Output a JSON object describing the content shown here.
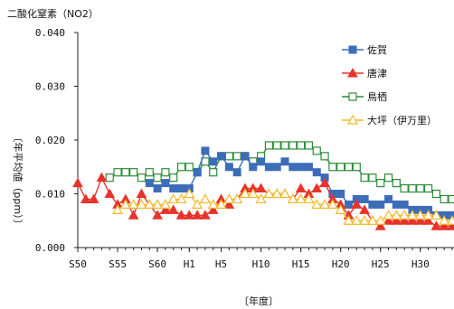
{
  "chart_data": {
    "type": "line",
    "title": "二酸化窒素（NO2）",
    "xlabel": "〔年度〕",
    "ylabel": "〔年平均値（ppm）〕",
    "ylim": [
      0,
      0.04
    ],
    "yticks": [
      "0.000",
      "0.010",
      "0.020",
      "0.030",
      "0.040"
    ],
    "x_start_year": 1975,
    "x_end_year": 2022,
    "xticks": [
      {
        "label": "S50",
        "year": 1975
      },
      {
        "label": "S55",
        "year": 1980
      },
      {
        "label": "S60",
        "year": 1985
      },
      {
        "label": "H1",
        "year": 1989
      },
      {
        "label": "H5",
        "year": 1993
      },
      {
        "label": "H10",
        "year": 1998
      },
      {
        "label": "H15",
        "year": 2003
      },
      {
        "label": "H20",
        "year": 2008
      },
      {
        "label": "H25",
        "year": 2013
      },
      {
        "label": "H30",
        "year": 2018
      }
    ],
    "grid": false,
    "legend_position": "right",
    "series": [
      {
        "name": "佐賀",
        "color": "#3C6DB8",
        "marker": "square",
        "points": [
          [
            1984,
            0.012
          ],
          [
            1985,
            0.011
          ],
          [
            1986,
            0.012
          ],
          [
            1987,
            0.011
          ],
          [
            1988,
            0.011
          ],
          [
            1989,
            0.011
          ],
          [
            1990,
            0.014
          ],
          [
            1991,
            0.018
          ],
          [
            1992,
            0.016
          ],
          [
            1993,
            0.017
          ],
          [
            1994,
            0.015
          ],
          [
            1995,
            0.014
          ],
          [
            1996,
            0.017
          ],
          [
            1997,
            0.015
          ],
          [
            1998,
            0.016
          ],
          [
            1999,
            0.015
          ],
          [
            2000,
            0.015
          ],
          [
            2001,
            0.016
          ],
          [
            2002,
            0.015
          ],
          [
            2003,
            0.015
          ],
          [
            2004,
            0.015
          ],
          [
            2005,
            0.014
          ],
          [
            2006,
            0.013
          ],
          [
            2007,
            0.01
          ],
          [
            2008,
            0.01
          ],
          [
            2009,
            0.008
          ],
          [
            2010,
            0.009
          ],
          [
            2011,
            0.009
          ],
          [
            2012,
            0.008
          ],
          [
            2013,
            0.008
          ],
          [
            2014,
            0.009
          ],
          [
            2015,
            0.008
          ],
          [
            2016,
            0.008
          ],
          [
            2017,
            0.007
          ],
          [
            2018,
            0.007
          ],
          [
            2019,
            0.007
          ],
          [
            2020,
            0.006
          ],
          [
            2021,
            0.006
          ],
          [
            2022,
            0.006
          ]
        ]
      },
      {
        "name": "唐津",
        "color": "#E8332A",
        "marker": "triangle",
        "points": [
          [
            1975,
            0.012
          ],
          [
            1976,
            0.009
          ],
          [
            1977,
            0.009
          ],
          [
            1978,
            0.013
          ],
          [
            1979,
            0.01
          ],
          [
            1980,
            0.008
          ],
          [
            1981,
            0.009
          ],
          [
            1982,
            0.006
          ],
          [
            1983,
            0.01
          ],
          [
            1984,
            0.008
          ],
          [
            1985,
            0.006
          ],
          [
            1986,
            0.007
          ],
          [
            1987,
            0.007
          ],
          [
            1988,
            0.006
          ],
          [
            1989,
            0.006
          ],
          [
            1990,
            0.006
          ],
          [
            1991,
            0.006
          ],
          [
            1992,
            0.007
          ],
          [
            1993,
            0.009
          ],
          [
            1994,
            0.008
          ],
          [
            1995,
            0.009
          ],
          [
            1996,
            0.011
          ],
          [
            1997,
            0.011
          ],
          [
            1998,
            0.011
          ],
          [
            1999,
            0.01
          ],
          [
            2000,
            0.01
          ],
          [
            2001,
            0.01
          ],
          [
            2002,
            0.009
          ],
          [
            2003,
            0.011
          ],
          [
            2004,
            0.01
          ],
          [
            2005,
            0.011
          ],
          [
            2006,
            0.012
          ],
          [
            2007,
            0.009
          ],
          [
            2008,
            0.008
          ],
          [
            2009,
            0.006
          ],
          [
            2010,
            0.008
          ],
          [
            2011,
            0.007
          ],
          [
            2012,
            0.005
          ],
          [
            2013,
            0.004
          ],
          [
            2014,
            0.005
          ],
          [
            2015,
            0.005
          ],
          [
            2016,
            0.005
          ],
          [
            2017,
            0.005
          ],
          [
            2018,
            0.005
          ],
          [
            2019,
            0.005
          ],
          [
            2020,
            0.004
          ],
          [
            2021,
            0.004
          ],
          [
            2022,
            0.004
          ]
        ]
      },
      {
        "name": "鳥栖",
        "color": "#2E8B3A",
        "marker": "square-open",
        "points": [
          [
            1979,
            0.013
          ],
          [
            1980,
            0.014
          ],
          [
            1981,
            0.014
          ],
          [
            1982,
            0.014
          ],
          [
            1983,
            0.013
          ],
          [
            1984,
            0.014
          ],
          [
            1985,
            0.013
          ],
          [
            1986,
            0.014
          ],
          [
            1987,
            0.013
          ],
          [
            1988,
            0.015
          ],
          [
            1989,
            0.015
          ],
          [
            1990,
            0.014
          ],
          [
            1991,
            0.016
          ],
          [
            1992,
            0.014
          ],
          [
            1993,
            0.017
          ],
          [
            1994,
            0.017
          ],
          [
            1995,
            0.017
          ],
          [
            1996,
            0.017
          ],
          [
            1997,
            0.016
          ],
          [
            1998,
            0.017
          ],
          [
            1999,
            0.019
          ],
          [
            2000,
            0.019
          ],
          [
            2001,
            0.019
          ],
          [
            2002,
            0.019
          ],
          [
            2003,
            0.019
          ],
          [
            2004,
            0.019
          ],
          [
            2005,
            0.018
          ],
          [
            2006,
            0.017
          ],
          [
            2007,
            0.015
          ],
          [
            2008,
            0.015
          ],
          [
            2009,
            0.015
          ],
          [
            2010,
            0.015
          ],
          [
            2011,
            0.013
          ],
          [
            2012,
            0.013
          ],
          [
            2013,
            0.012
          ],
          [
            2014,
            0.013
          ],
          [
            2015,
            0.012
          ],
          [
            2016,
            0.011
          ],
          [
            2017,
            0.011
          ],
          [
            2018,
            0.011
          ],
          [
            2019,
            0.011
          ],
          [
            2020,
            0.01
          ],
          [
            2021,
            0.009
          ],
          [
            2022,
            0.009
          ]
        ]
      },
      {
        "name": "大坪（伊万里）",
        "color": "#F2B92B",
        "marker": "triangle-open",
        "points": [
          [
            1980,
            0.007
          ],
          [
            1981,
            0.008
          ],
          [
            1982,
            0.008
          ],
          [
            1983,
            0.008
          ],
          [
            1984,
            0.008
          ],
          [
            1985,
            0.008
          ],
          [
            1986,
            0.008
          ],
          [
            1987,
            0.009
          ],
          [
            1988,
            0.009
          ],
          [
            1989,
            0.01
          ],
          [
            1990,
            0.008
          ],
          [
            1991,
            0.009
          ],
          [
            1992,
            0.008
          ],
          [
            1993,
            0.008
          ],
          [
            1994,
            0.009
          ],
          [
            1995,
            0.009
          ],
          [
            1996,
            0.01
          ],
          [
            1997,
            0.01
          ],
          [
            1998,
            0.009
          ],
          [
            1999,
            0.01
          ],
          [
            2000,
            0.01
          ],
          [
            2001,
            0.01
          ],
          [
            2002,
            0.009
          ],
          [
            2003,
            0.009
          ],
          [
            2004,
            0.009
          ],
          [
            2005,
            0.008
          ],
          [
            2006,
            0.008
          ],
          [
            2007,
            0.008
          ],
          [
            2008,
            0.007
          ],
          [
            2009,
            0.005
          ],
          [
            2010,
            0.005
          ],
          [
            2011,
            0.005
          ],
          [
            2012,
            0.005
          ],
          [
            2013,
            0.005
          ],
          [
            2014,
            0.006
          ],
          [
            2015,
            0.006
          ],
          [
            2016,
            0.006
          ],
          [
            2017,
            0.006
          ],
          [
            2018,
            0.006
          ],
          [
            2019,
            0.006
          ],
          [
            2020,
            0.006
          ],
          [
            2021,
            0.005
          ],
          [
            2022,
            0.005
          ]
        ]
      }
    ]
  }
}
